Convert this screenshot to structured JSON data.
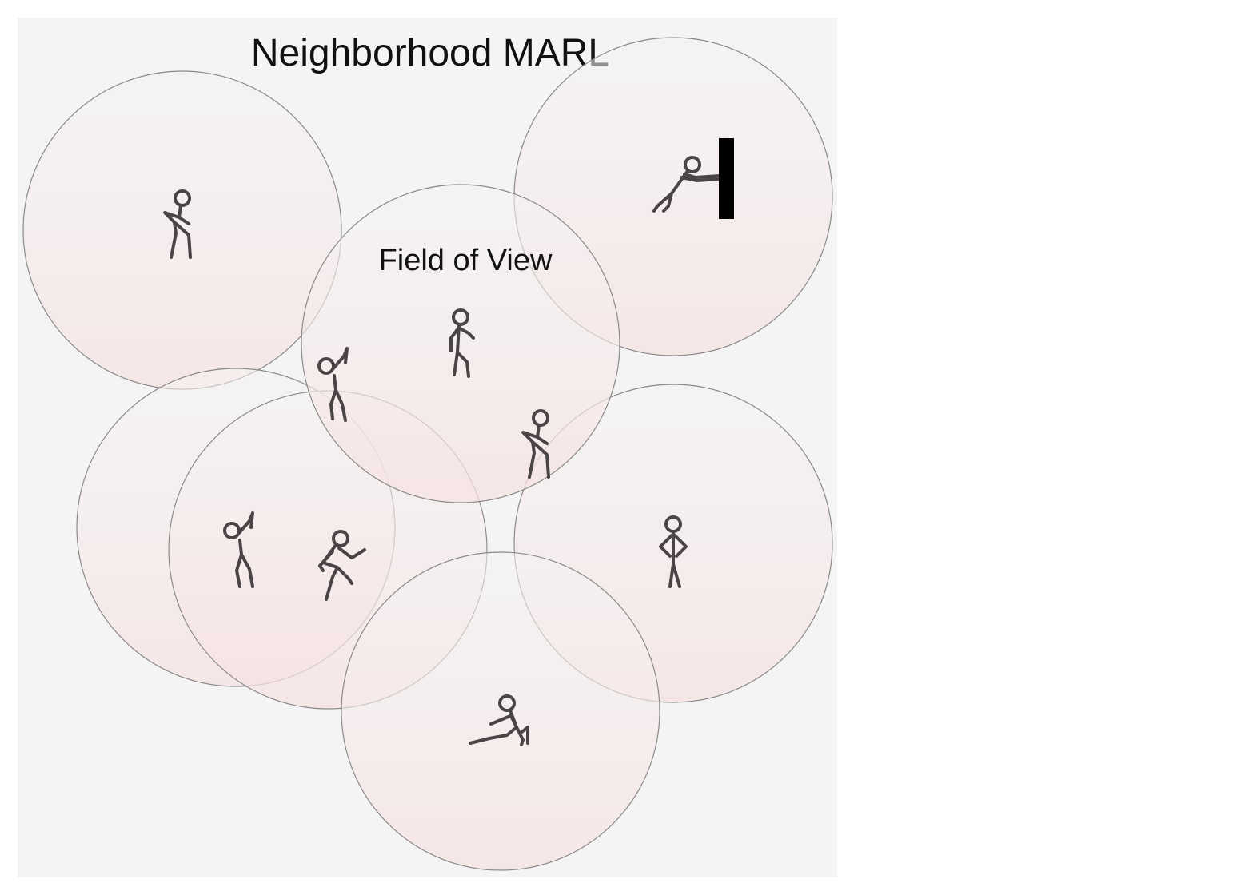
{
  "diagram": {
    "title": "Neighborhood MARL",
    "field_label": "Field of View",
    "colors": {
      "background": "#f4f4f4",
      "circle_fill_top": "#f5f2f2",
      "circle_fill_bottom": "#f6e4e4",
      "circle_stroke": "#8a8a8a",
      "figure_stroke": "#4a4446",
      "wall": "#000000"
    },
    "agents": [
      {
        "name": "walking-agent",
        "icon": "stick-figure-walking"
      },
      {
        "name": "pushing-agent",
        "icon": "stick-figure-pushing-wall"
      },
      {
        "name": "center-thinking-agent",
        "icon": "stick-figure-thinking"
      },
      {
        "name": "center-waving-agent",
        "icon": "stick-figure-waving"
      },
      {
        "name": "center-walking-agent",
        "icon": "stick-figure-walking"
      },
      {
        "name": "lower-waving-agent",
        "icon": "stick-figure-waving"
      },
      {
        "name": "dancing-agent",
        "icon": "stick-figure-dancing"
      },
      {
        "name": "standing-agent",
        "icon": "stick-figure-hands-on-hips"
      },
      {
        "name": "sitting-agent",
        "icon": "stick-figure-sitting"
      }
    ]
  }
}
